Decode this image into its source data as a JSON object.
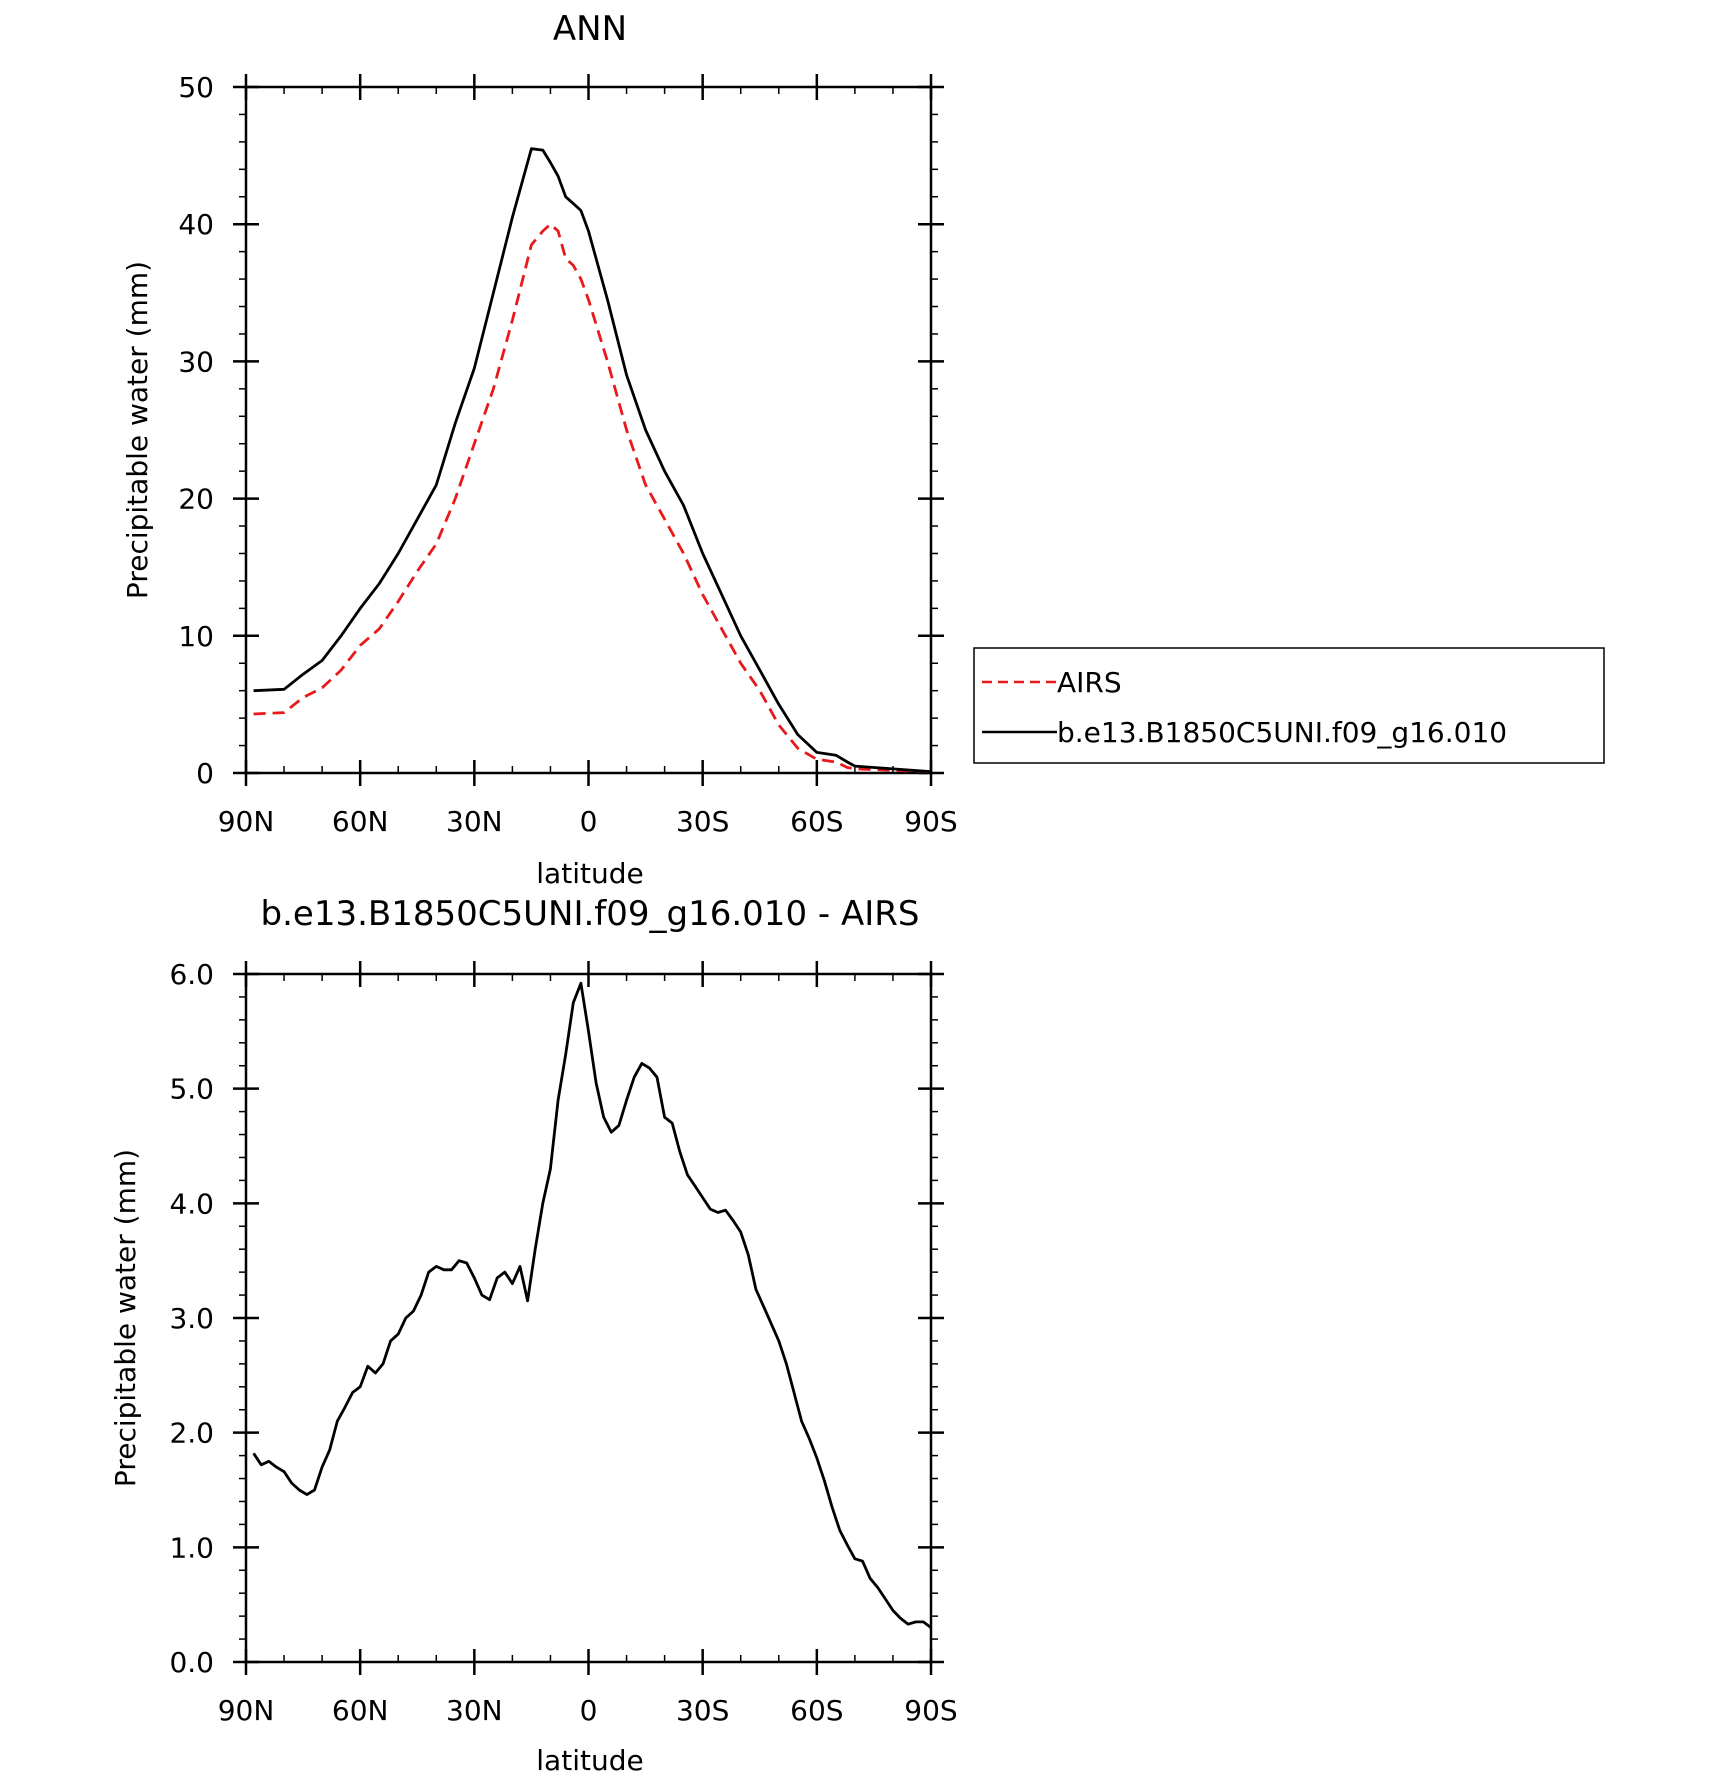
{
  "chart_data": [
    {
      "type": "line",
      "title": "ANN",
      "xlabel": "latitude",
      "ylabel": "Precipitable water (mm)",
      "xlim": [
        90,
        -90
      ],
      "ylim": [
        0,
        50
      ],
      "x_ticks": [
        90,
        60,
        30,
        0,
        -30,
        -60,
        -90
      ],
      "x_tick_labels": [
        "90N",
        "60N",
        "30N",
        "0",
        "30S",
        "60S",
        "90S"
      ],
      "y_ticks": [
        0,
        10,
        20,
        30,
        40,
        50
      ],
      "y_tick_labels": [
        "0",
        "10",
        "20",
        "30",
        "40",
        "50"
      ],
      "legend_position": "right",
      "series": [
        {
          "name": "AIRS",
          "style": "dashed",
          "color": "#e8191b",
          "x": [
            88,
            80,
            75,
            70,
            65,
            60,
            55,
            50,
            45,
            40,
            35,
            30,
            25,
            20,
            15,
            12,
            10,
            8,
            6,
            4,
            2,
            0,
            -5,
            -10,
            -15,
            -20,
            -25,
            -30,
            -35,
            -40,
            -45,
            -50,
            -55,
            -60,
            -65,
            -68,
            -70,
            -75,
            -80,
            -85,
            -90
          ],
          "y": [
            4.3,
            4.4,
            5.5,
            6.2,
            7.5,
            9.3,
            10.5,
            12.5,
            14.7,
            16.7,
            20.0,
            24.0,
            28.0,
            33.0,
            38.5,
            39.5,
            40.0,
            39.5,
            37.5,
            37.0,
            36.0,
            34.5,
            30.0,
            25.0,
            21.0,
            18.5,
            16.0,
            13.0,
            10.5,
            8.0,
            6.0,
            3.5,
            1.8,
            1.0,
            0.8,
            0.4,
            0.3,
            0.25,
            0.2,
            0.15,
            0.1
          ]
        },
        {
          "name": "b.e13.B1850C5UNI.f09_g16.010",
          "style": "solid",
          "color": "#000000",
          "x": [
            88,
            80,
            75,
            70,
            65,
            60,
            55,
            50,
            45,
            40,
            35,
            30,
            25,
            20,
            15,
            12,
            10,
            8,
            6,
            4,
            2,
            0,
            -5,
            -10,
            -15,
            -20,
            -25,
            -30,
            -35,
            -40,
            -45,
            -50,
            -55,
            -60,
            -65,
            -68,
            -70,
            -75,
            -80,
            -85,
            -90
          ],
          "y": [
            6.0,
            6.1,
            7.2,
            8.2,
            10.0,
            12.0,
            13.8,
            16.0,
            18.5,
            21.0,
            25.5,
            29.5,
            35.0,
            40.5,
            45.5,
            45.4,
            44.5,
            43.5,
            42.0,
            41.5,
            41.0,
            39.5,
            34.5,
            29.0,
            25.0,
            22.0,
            19.5,
            16.0,
            13.0,
            10.0,
            7.5,
            5.0,
            2.8,
            1.5,
            1.3,
            0.8,
            0.5,
            0.4,
            0.3,
            0.2,
            0.1
          ]
        }
      ]
    },
    {
      "type": "line",
      "title": "b.e13.B1850C5UNI.f09_g16.010 - AIRS",
      "xlabel": "latitude",
      "ylabel": "Precipitable water (mm)",
      "xlim": [
        90,
        -90
      ],
      "ylim": [
        0,
        6
      ],
      "x_ticks": [
        90,
        60,
        30,
        0,
        -30,
        -60,
        -90
      ],
      "x_tick_labels": [
        "90N",
        "60N",
        "30N",
        "0",
        "30S",
        "60S",
        "90S"
      ],
      "y_ticks": [
        0,
        1,
        2,
        3,
        4,
        5,
        6
      ],
      "y_tick_labels": [
        "0.0",
        "1.0",
        "2.0",
        "3.0",
        "4.0",
        "5.0",
        "6.0"
      ],
      "series": [
        {
          "style": "solid",
          "color": "#000000",
          "x": [
            88,
            86,
            84,
            82,
            80,
            78,
            76,
            74,
            72,
            70,
            68,
            66,
            64,
            62,
            60,
            58,
            56,
            54,
            52,
            50,
            48,
            46,
            44,
            42,
            40,
            38,
            36,
            34,
            32,
            30,
            28,
            26,
            24,
            22,
            20,
            18,
            16,
            14,
            12,
            10,
            8,
            6,
            4,
            2,
            0,
            -2,
            -4,
            -6,
            -8,
            -10,
            -12,
            -14,
            -16,
            -18,
            -20,
            -22,
            -24,
            -26,
            -28,
            -30,
            -32,
            -34,
            -36,
            -38,
            -40,
            -42,
            -44,
            -46,
            -48,
            -50,
            -52,
            -54,
            -56,
            -58,
            -60,
            -62,
            -64,
            -66,
            -68,
            -70,
            -72,
            -74,
            -76,
            -78,
            -80,
            -82,
            -84,
            -86,
            -88,
            -90
          ],
          "y": [
            1.82,
            1.72,
            1.75,
            1.7,
            1.66,
            1.56,
            1.5,
            1.46,
            1.5,
            1.7,
            1.85,
            2.1,
            2.22,
            2.35,
            2.4,
            2.58,
            2.52,
            2.6,
            2.8,
            2.86,
            3.0,
            3.06,
            3.2,
            3.4,
            3.45,
            3.42,
            3.42,
            3.5,
            3.48,
            3.35,
            3.2,
            3.16,
            3.35,
            3.4,
            3.3,
            3.45,
            3.15,
            3.6,
            4.0,
            4.3,
            4.9,
            5.3,
            5.75,
            5.92,
            5.5,
            5.05,
            4.75,
            4.62,
            4.68,
            4.9,
            5.1,
            5.22,
            5.18,
            5.1,
            4.75,
            4.7,
            4.45,
            4.25,
            4.15,
            4.05,
            3.95,
            3.92,
            3.94,
            3.85,
            3.75,
            3.55,
            3.25,
            3.1,
            2.95,
            2.8,
            2.6,
            2.35,
            2.1,
            1.95,
            1.78,
            1.58,
            1.35,
            1.15,
            1.02,
            0.9,
            0.88,
            0.73,
            0.65,
            0.55,
            0.45,
            0.38,
            0.33,
            0.35,
            0.35,
            0.3
          ]
        }
      ]
    }
  ]
}
